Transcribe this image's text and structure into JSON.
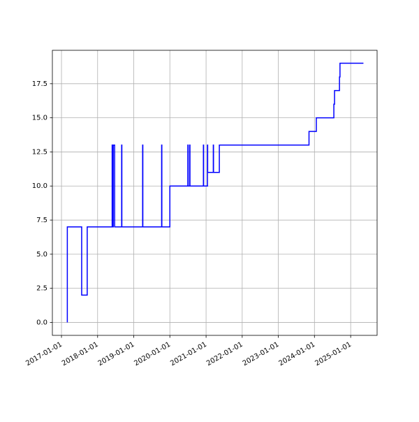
{
  "chart_data": {
    "type": "line",
    "x": [
      "2017-03-01",
      "2017-03-01",
      "2017-07-24",
      "2017-07-24",
      "2017-09-18",
      "2017-09-18",
      "2018-05-28",
      "2018-05-28",
      "2018-06-02",
      "2018-06-02",
      "2018-06-08",
      "2018-06-08",
      "2018-06-22",
      "2018-06-22",
      "2018-09-01",
      "2018-09-01",
      "2018-09-03",
      "2018-09-03",
      "2019-04-01",
      "2019-04-01",
      "2019-04-03",
      "2019-04-03",
      "2019-10-10",
      "2019-10-10",
      "2019-10-12",
      "2019-10-12",
      "2020-01-01",
      "2020-01-01",
      "2020-07-01",
      "2020-07-01",
      "2020-07-04",
      "2020-07-04",
      "2020-07-20",
      "2020-07-20",
      "2020-07-22",
      "2020-07-22",
      "2020-12-05",
      "2020-12-05",
      "2020-12-07",
      "2020-12-07",
      "2021-01-15",
      "2021-01-15",
      "2021-01-17",
      "2021-01-17",
      "2021-03-15",
      "2021-03-15",
      "2021-03-17",
      "2021-03-17",
      "2021-05-15",
      "2021-05-15",
      "2023-11-07",
      "2023-11-07",
      "2024-01-20",
      "2024-01-20",
      "2024-07-15",
      "2024-07-15",
      "2024-07-22",
      "2024-07-22",
      "2024-09-10",
      "2024-09-10",
      "2024-09-15",
      "2024-09-15",
      "2025-05-10"
    ],
    "series": [
      {
        "color": "#0000ff",
        "values": [
          0,
          7,
          7,
          2,
          2,
          7,
          7,
          13,
          13,
          7,
          7,
          13,
          13,
          7,
          7,
          13,
          13,
          7,
          7,
          13,
          13,
          7,
          7,
          13,
          13,
          7,
          7,
          10,
          10,
          13,
          13,
          10,
          10,
          13,
          13,
          10,
          10,
          13,
          13,
          10,
          10,
          13,
          13,
          11,
          11,
          13,
          13,
          11,
          11,
          13,
          13,
          14,
          14,
          15,
          15,
          16,
          16,
          17,
          17,
          18,
          18,
          19,
          19
        ]
      }
    ],
    "xlim": [
      "2016-10-01",
      "2025-09-25"
    ],
    "xticks": [
      "2017-01-01",
      "2018-01-01",
      "2019-01-01",
      "2020-01-01",
      "2021-01-01",
      "2022-01-01",
      "2023-01-01",
      "2024-01-01",
      "2025-01-01"
    ],
    "ylim": [
      -0.95,
      19.95
    ],
    "yticks": [
      {
        "value": 0,
        "label": "0.0"
      },
      2.5,
      {
        "value": 5,
        "label": "5.0"
      },
      7.5,
      {
        "value": 10,
        "label": "10.0"
      },
      12.5,
      {
        "value": 15,
        "label": "15.0"
      },
      17.5
    ],
    "grid": true
  }
}
